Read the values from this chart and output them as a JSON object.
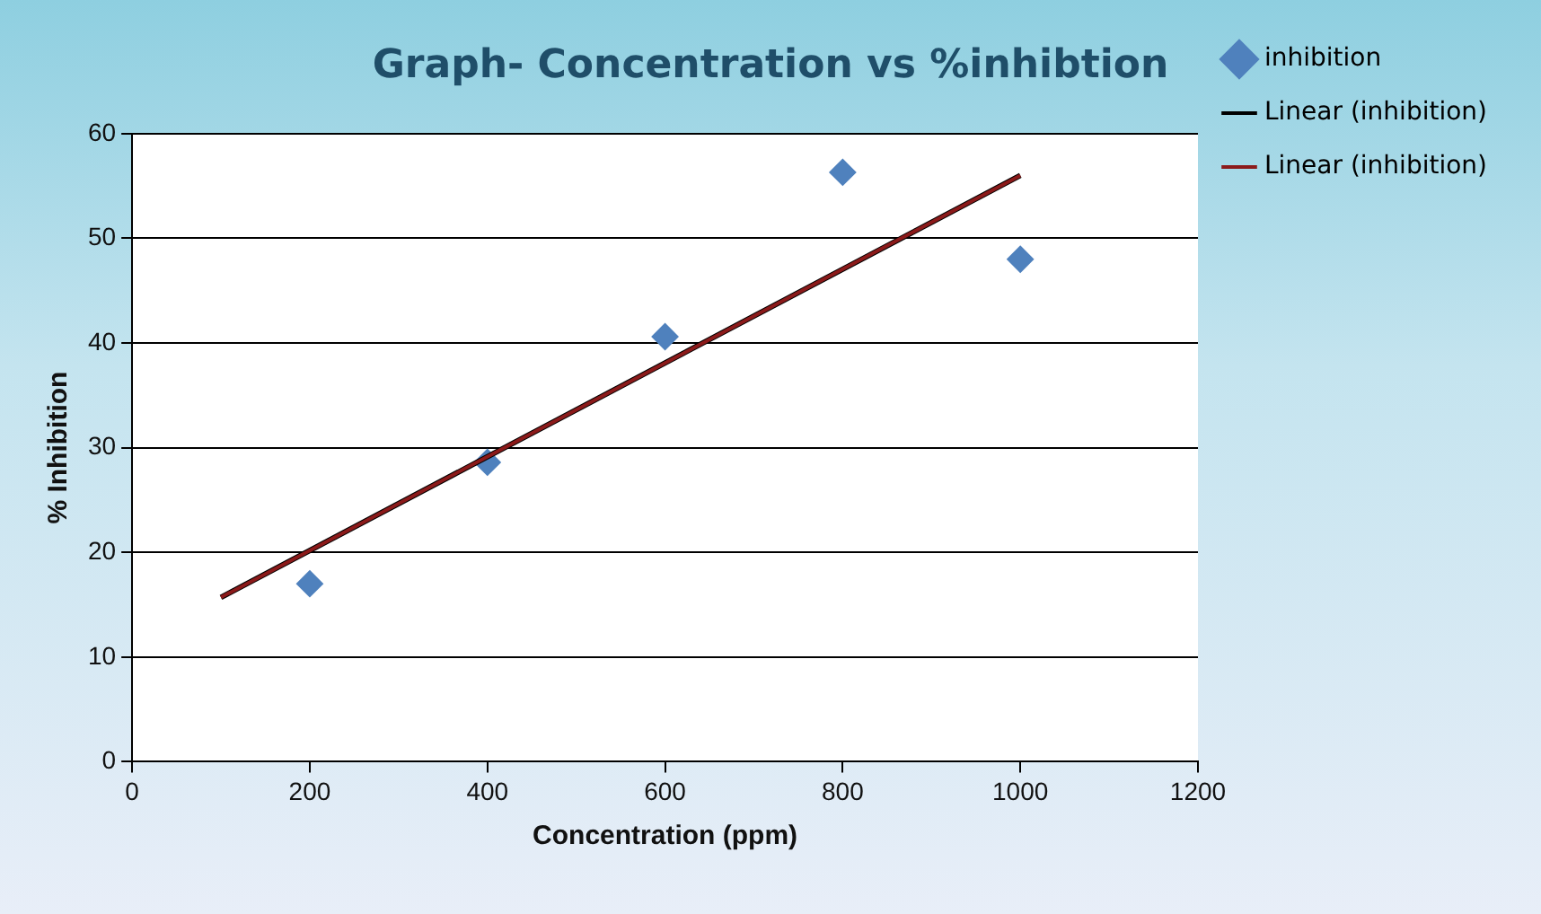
{
  "chart_data": {
    "type": "scatter",
    "title": "Graph- Concentration vs %inhibtion",
    "xlabel": "Concentration (ppm)",
    "ylabel": "% Inhibition",
    "xlim": [
      0,
      1200
    ],
    "xticks": [
      0,
      200,
      400,
      600,
      800,
      1000,
      1200
    ],
    "ylim": [
      0,
      60
    ],
    "yticks": [
      0,
      10,
      20,
      30,
      40,
      50,
      60
    ],
    "grid": "y",
    "legend": "right",
    "series": [
      {
        "name": "inhibition",
        "color": "#4f81bd",
        "marker": "diamond",
        "x": [
          200,
          400,
          600,
          800,
          1000
        ],
        "values": [
          17,
          28.6,
          40.6,
          56.3,
          48
        ]
      },
      {
        "name": "Linear (inhibition)",
        "type": "line",
        "color": "#000000",
        "marker": "none",
        "x": [
          100,
          1000
        ],
        "values": [
          15.7,
          56
        ]
      },
      {
        "name": "Linear (inhibition)",
        "type": "line",
        "color": "#8b1a1a",
        "marker": "none",
        "x": [
          100,
          1000
        ],
        "values": [
          15.7,
          56
        ]
      }
    ]
  }
}
